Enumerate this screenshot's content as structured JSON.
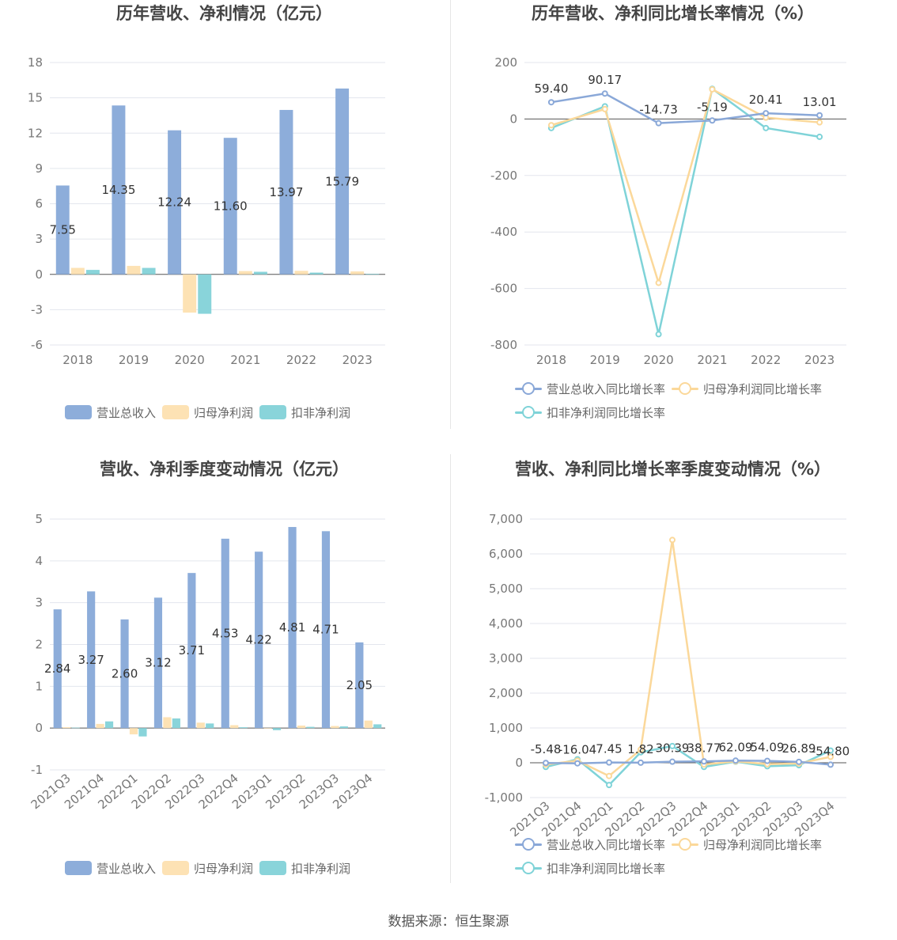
{
  "colors": {
    "revenue": "#8dadda",
    "net_profit": "#fde2b4",
    "deducted_profit": "#89d4da",
    "revenue_line": "#8aa8d8",
    "net_line": "#fbd89a",
    "deducted_line": "#7fd3d8"
  },
  "panels": [
    {
      "title": "历年营收、净利情况（亿元）",
      "legend": [
        "营业总收入",
        "归母净利润",
        "扣非净利润"
      ],
      "chart_data": {
        "type": "bar",
        "categories": [
          "2018",
          "2019",
          "2020",
          "2021",
          "2022",
          "2023"
        ],
        "series": [
          {
            "name": "营业总收入",
            "values": [
              7.55,
              14.35,
              12.24,
              11.6,
              13.97,
              15.79
            ]
          },
          {
            "name": "归母净利润",
            "values": [
              0.55,
              0.72,
              -3.25,
              0.28,
              0.3,
              0.25
            ]
          },
          {
            "name": "扣非净利润",
            "values": [
              0.38,
              0.55,
              -3.35,
              0.22,
              0.15,
              0.05
            ]
          }
        ],
        "data_labels": [
          "7.55",
          "14.35",
          "12.24",
          "11.60",
          "13.97",
          "15.79"
        ],
        "yticks": [
          "18",
          "15",
          "12",
          "9",
          "6",
          "3",
          "0",
          "-3",
          "-6"
        ],
        "ylim": [
          -6,
          18
        ],
        "grid": true
      }
    },
    {
      "title": "历年营收、净利同比增长率情况（%）",
      "legend": [
        "营业总收入同比增长率",
        "归母净利润同比增长率",
        "扣非净利润同比增长率"
      ],
      "chart_data": {
        "type": "line",
        "categories": [
          "2018",
          "2019",
          "2020",
          "2021",
          "2022",
          "2023"
        ],
        "series": [
          {
            "name": "营业总收入同比增长率",
            "values": [
              59.4,
              90.17,
              -14.73,
              -5.19,
              20.41,
              13.01
            ]
          },
          {
            "name": "归母净利润同比增长率",
            "values": [
              -22,
              35,
              -580,
              105,
              5,
              -12
            ]
          },
          {
            "name": "扣非净利润同比增长率",
            "values": [
              -32,
              45,
              -762,
              107,
              -32,
              -63
            ]
          }
        ],
        "data_labels": [
          "59.40",
          "90.17",
          "-14.73",
          "-5.19",
          "20.41",
          "13.01"
        ],
        "yticks": [
          "200",
          "0",
          "-200",
          "-400",
          "-600",
          "-800"
        ],
        "ylim": [
          -800,
          200
        ],
        "grid": true
      }
    },
    {
      "title": "营收、净利季度变动情况（亿元）",
      "legend": [
        "营业总收入",
        "归母净利润",
        "扣非净利润"
      ],
      "chart_data": {
        "type": "bar",
        "categories": [
          "2021Q3",
          "2021Q4",
          "2022Q1",
          "2022Q2",
          "2022Q3",
          "2022Q4",
          "2023Q1",
          "2023Q2",
          "2023Q3",
          "2023Q4"
        ],
        "series": [
          {
            "name": "营业总收入",
            "values": [
              2.84,
              3.27,
              2.6,
              3.12,
              3.71,
              4.53,
              4.22,
              4.81,
              4.71,
              2.05
            ]
          },
          {
            "name": "归母净利润",
            "values": [
              0.02,
              0.1,
              -0.15,
              0.26,
              0.13,
              0.07,
              0.0,
              0.06,
              0.05,
              0.18
            ]
          },
          {
            "name": "扣非净利润",
            "values": [
              0.01,
              0.16,
              -0.2,
              0.23,
              0.11,
              0.02,
              -0.05,
              0.03,
              0.04,
              0.09
            ]
          }
        ],
        "data_labels": [
          "2.84",
          "3.27",
          "2.60",
          "3.12",
          "3.71",
          "4.53",
          "4.22",
          "4.81",
          "4.71",
          "2.05"
        ],
        "yticks": [
          "5",
          "4",
          "3",
          "2",
          "1",
          "0",
          "-1"
        ],
        "ylim": [
          -1,
          5
        ],
        "grid": true
      }
    },
    {
      "title": "营收、净利同比增长率季度变动情况（%）",
      "legend": [
        "营业总收入同比增长率",
        "归母净利润同比增长率",
        "扣非净利润同比增长率"
      ],
      "chart_data": {
        "type": "line",
        "categories": [
          "2021Q3",
          "2021Q4",
          "2022Q1",
          "2022Q2",
          "2022Q3",
          "2022Q4",
          "2023Q1",
          "2023Q2",
          "2023Q3",
          "2023Q4"
        ],
        "series": [
          {
            "name": "营业总收入同比增长率",
            "values": [
              -5.48,
              -16.04,
              7.45,
              1.82,
              30.39,
              38.77,
              62.09,
              54.09,
              26.89,
              -54.8
            ]
          },
          {
            "name": "归母净利润同比增长率",
            "values": [
              -50,
              60,
              -380,
              380,
              6400,
              -50,
              40,
              -40,
              -20,
              170
            ]
          },
          {
            "name": "扣非净利润同比增长率",
            "values": [
              -120,
              100,
              -640,
              300,
              480,
              -120,
              30,
              -100,
              -70,
              350
            ]
          }
        ],
        "data_labels": [
          "-5.48",
          "-16.04",
          "7.45",
          "1.82",
          "30.39",
          "38.77",
          "62.09",
          "54.09",
          "26.89",
          "-54.80"
        ],
        "yticks": [
          "7,000",
          "6,000",
          "5,000",
          "4,000",
          "3,000",
          "2,000",
          "1,000",
          "0",
          "-1,000"
        ],
        "ylim": [
          -1000,
          7000
        ],
        "grid": true
      }
    }
  ],
  "footer": {
    "source": "数据来源：恒生聚源"
  }
}
